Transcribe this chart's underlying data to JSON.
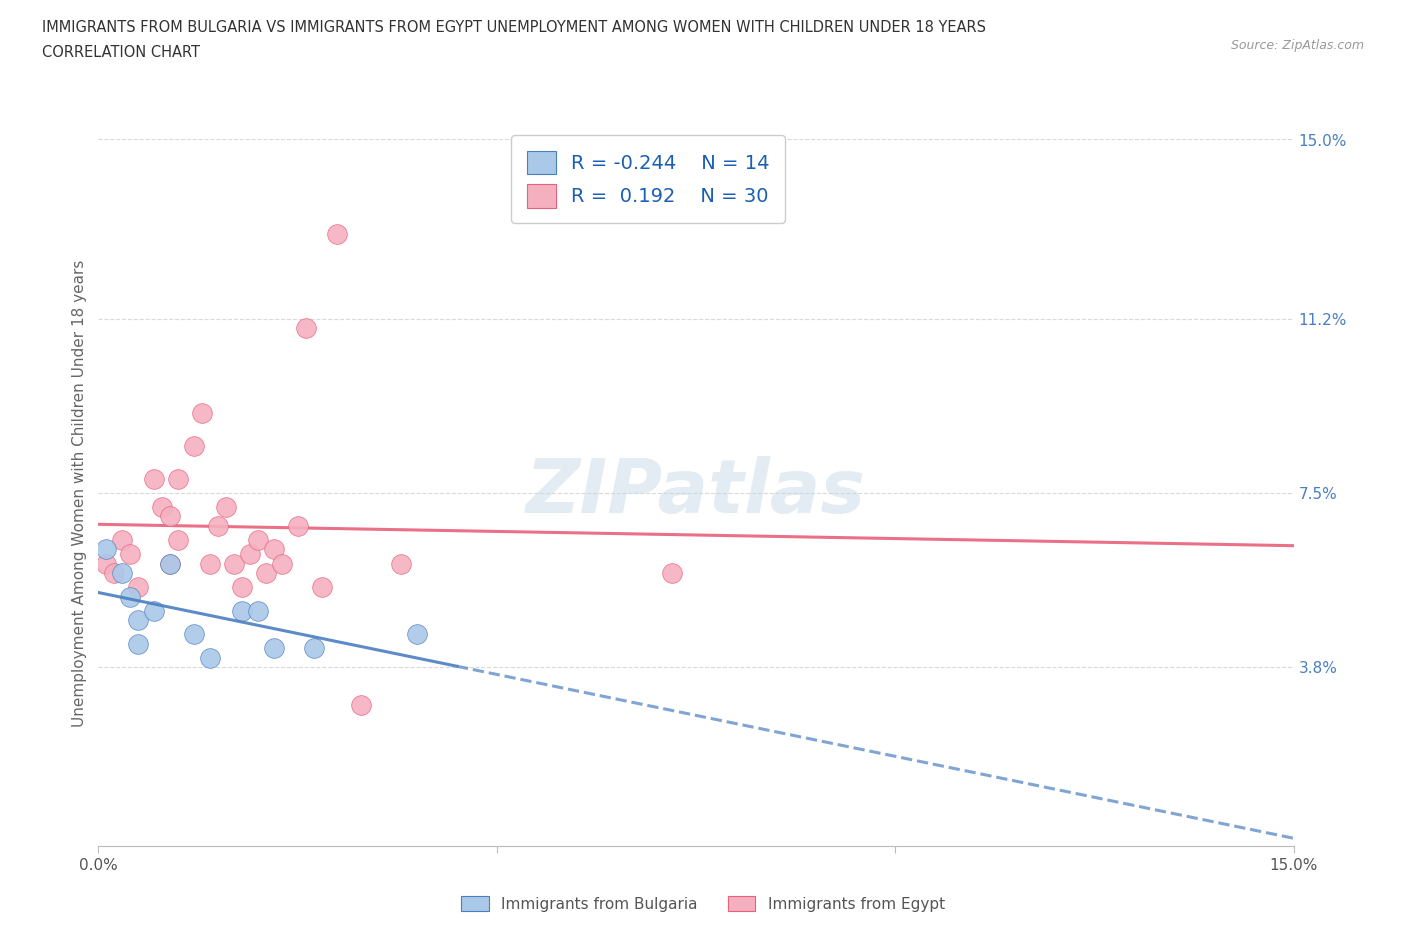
{
  "title_line1": "IMMIGRANTS FROM BULGARIA VS IMMIGRANTS FROM EGYPT UNEMPLOYMENT AMONG WOMEN WITH CHILDREN UNDER 18 YEARS",
  "title_line2": "CORRELATION CHART",
  "source": "Source: ZipAtlas.com",
  "ylabel": "Unemployment Among Women with Children Under 18 years",
  "xlim": [
    0.0,
    0.15
  ],
  "ylim": [
    0.0,
    0.15
  ],
  "ytick_positions": [
    0.038,
    0.075,
    0.112,
    0.15
  ],
  "ytick_labels": [
    "3.8%",
    "7.5%",
    "11.2%",
    "15.0%"
  ],
  "grid_color": "#d0d0d0",
  "bulgaria_color": "#aac8e8",
  "egypt_color": "#f5b0c0",
  "bulgaria_line_color": "#4a7fc1",
  "egypt_line_color": "#e8607a",
  "bulgaria_R": -0.244,
  "bulgaria_N": 14,
  "egypt_R": 0.192,
  "egypt_N": 30,
  "bulgaria_points": [
    [
      0.001,
      0.063
    ],
    [
      0.003,
      0.058
    ],
    [
      0.004,
      0.053
    ],
    [
      0.005,
      0.048
    ],
    [
      0.005,
      0.043
    ],
    [
      0.007,
      0.05
    ],
    [
      0.009,
      0.06
    ],
    [
      0.012,
      0.045
    ],
    [
      0.014,
      0.04
    ],
    [
      0.018,
      0.05
    ],
    [
      0.02,
      0.05
    ],
    [
      0.022,
      0.042
    ],
    [
      0.027,
      0.042
    ],
    [
      0.04,
      0.045
    ]
  ],
  "egypt_points": [
    [
      0.001,
      0.06
    ],
    [
      0.002,
      0.058
    ],
    [
      0.003,
      0.065
    ],
    [
      0.004,
      0.062
    ],
    [
      0.005,
      0.055
    ],
    [
      0.007,
      0.078
    ],
    [
      0.008,
      0.072
    ],
    [
      0.009,
      0.07
    ],
    [
      0.009,
      0.06
    ],
    [
      0.01,
      0.078
    ],
    [
      0.01,
      0.065
    ],
    [
      0.012,
      0.085
    ],
    [
      0.013,
      0.092
    ],
    [
      0.014,
      0.06
    ],
    [
      0.015,
      0.068
    ],
    [
      0.016,
      0.072
    ],
    [
      0.017,
      0.06
    ],
    [
      0.018,
      0.055
    ],
    [
      0.019,
      0.062
    ],
    [
      0.02,
      0.065
    ],
    [
      0.021,
      0.058
    ],
    [
      0.022,
      0.063
    ],
    [
      0.023,
      0.06
    ],
    [
      0.025,
      0.068
    ],
    [
      0.026,
      0.11
    ],
    [
      0.028,
      0.055
    ],
    [
      0.03,
      0.13
    ],
    [
      0.033,
      0.03
    ],
    [
      0.038,
      0.06
    ],
    [
      0.072,
      0.058
    ]
  ],
  "legend_label_bulgaria": "Immigrants from Bulgaria",
  "legend_label_egypt": "Immigrants from Egypt",
  "bg_color": "#ffffff",
  "plot_bg_color": "#ffffff"
}
